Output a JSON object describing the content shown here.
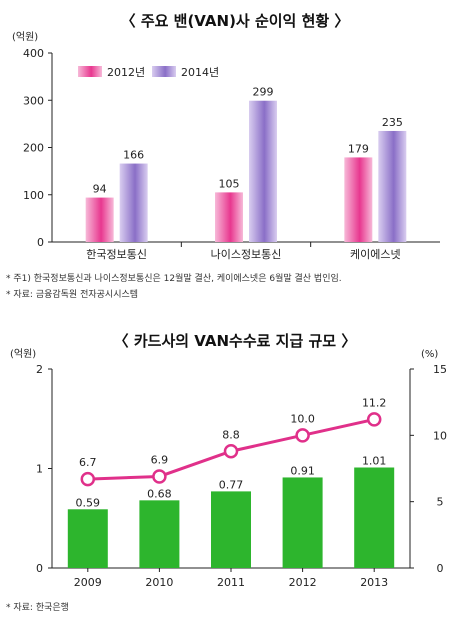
{
  "notes": {
    "chart1_footnote": "* 주1) 한국정보통신과 나이스정보통신은 12월말 결산, 케이에스넷은 6월말 결산 법인임.",
    "chart1_source": "* 자료: 금융감독원 전자공시시스템",
    "chart2_source": "* 자료: 한국은행"
  },
  "chart_data": [
    {
      "type": "bar",
      "title": "〈 주요 밴(VAN)사 순이익 현황 〉",
      "ylabel": "(억원)",
      "ylim": [
        0,
        400
      ],
      "yticks": [
        "0",
        "100",
        "200",
        "300",
        "400"
      ],
      "categories": [
        "한국정보통신",
        "나이스정보통신",
        "케이에스넷"
      ],
      "series": [
        {
          "name": "2012년",
          "values": [
            94,
            105,
            179
          ],
          "labels": [
            "94",
            "105",
            "179"
          ],
          "color": "#e8378f"
        },
        {
          "name": "2014년",
          "values": [
            166,
            299,
            235
          ],
          "labels": [
            "166",
            "299",
            "235"
          ],
          "color": "#8a6fc7"
        }
      ],
      "grid": false,
      "legend": "top-left"
    },
    {
      "type": "bar",
      "title": "〈 카드사의 VAN수수료 지급 규모 〉",
      "ylabel": "(억원)",
      "y2label": "(%)",
      "ylim": [
        0,
        2
      ],
      "yticks": [
        "0",
        "1",
        "2"
      ],
      "y2lim": [
        0,
        15
      ],
      "y2ticks": [
        "0",
        "5",
        "10",
        "15"
      ],
      "categories": [
        "2009",
        "2010",
        "2011",
        "2012",
        "2013"
      ],
      "series": [
        {
          "kind": "bar",
          "axis": "left",
          "values": [
            0.59,
            0.68,
            0.77,
            0.91,
            1.01
          ],
          "labels": [
            "0.59",
            "0.68",
            "0.77",
            "0.91",
            "1.01"
          ],
          "color": "#2db52d"
        },
        {
          "kind": "line",
          "axis": "right",
          "values": [
            6.7,
            6.9,
            8.8,
            10.0,
            11.2
          ],
          "labels": [
            "6.7",
            "6.9",
            "8.8",
            "10.0",
            "11.2"
          ],
          "color": "#e0308a"
        }
      ],
      "grid": false,
      "legend": "none"
    }
  ]
}
